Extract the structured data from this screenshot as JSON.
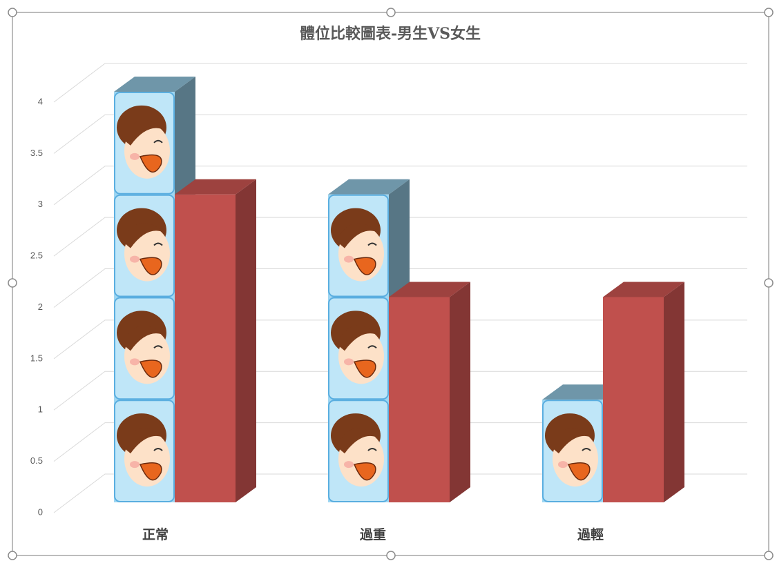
{
  "chart_data": {
    "type": "bar3d",
    "title": "體位比較圖表-男生VS女生",
    "categories": [
      "正常",
      "過重",
      "過輕"
    ],
    "series": [
      {
        "color": "#9ed6f2",
        "values": [
          4,
          3,
          1
        ]
      },
      {
        "color": "#c0504d",
        "values": [
          3,
          2,
          2
        ]
      }
    ],
    "ylim": [
      0,
      4
    ],
    "yticks": [
      0,
      0.5,
      1,
      1.5,
      2,
      2.5,
      3,
      3.5,
      4
    ],
    "grid": true
  }
}
